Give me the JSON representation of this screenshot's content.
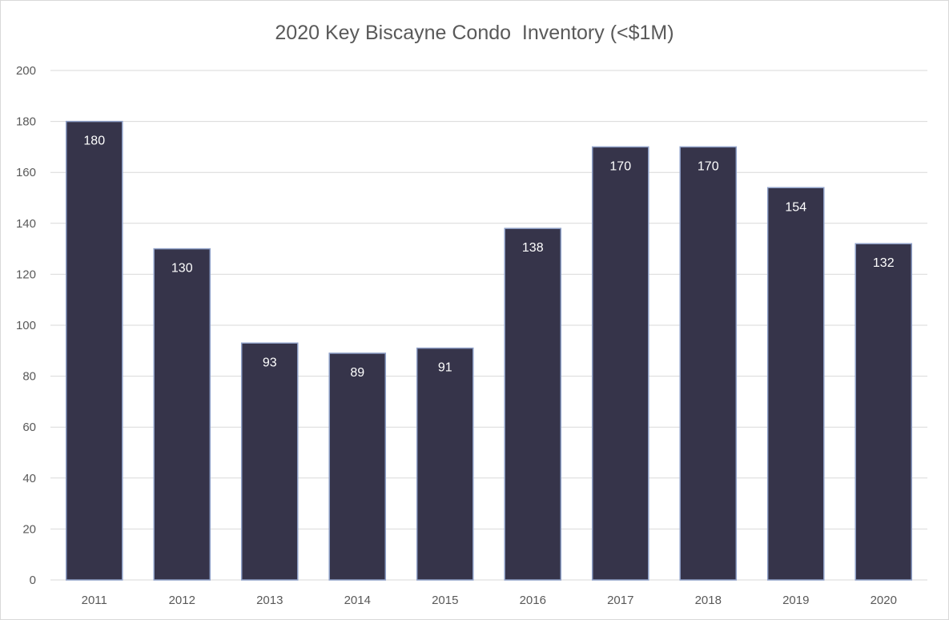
{
  "chart_data": {
    "type": "bar",
    "title": "2020 Key Biscayne Condo  Inventory (<$1M)",
    "xlabel": "",
    "ylabel": "",
    "categories": [
      "2011",
      "2012",
      "2013",
      "2014",
      "2015",
      "2016",
      "2017",
      "2018",
      "2019",
      "2020"
    ],
    "values": [
      180,
      130,
      93,
      89,
      91,
      138,
      170,
      170,
      154,
      132
    ],
    "ylim": [
      0,
      200
    ],
    "yticks": [
      0,
      20,
      40,
      60,
      80,
      100,
      120,
      140,
      160,
      180,
      200
    ],
    "grid": true,
    "legend": "none",
    "data_labels": true,
    "colors": {
      "bar": "#36344a",
      "bar_border": "#8fa0c8",
      "grid": "#d9d9d9",
      "text": "#595959",
      "label": "#ffffff"
    }
  }
}
